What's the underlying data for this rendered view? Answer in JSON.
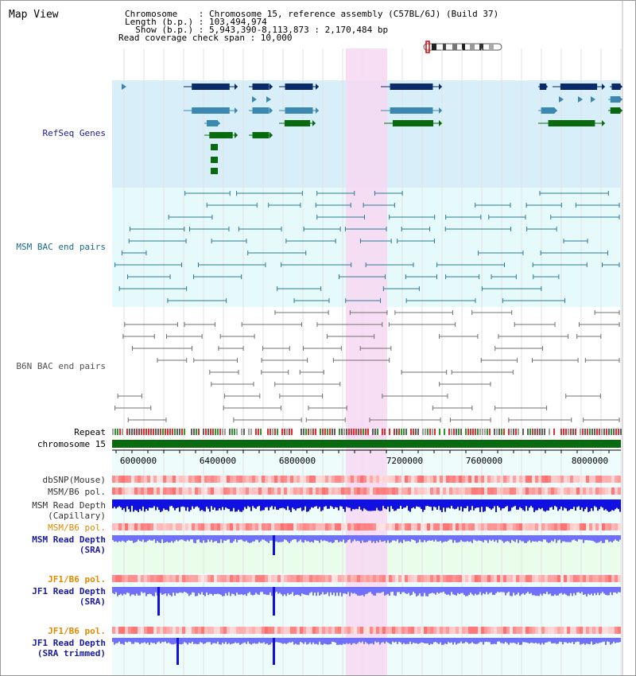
{
  "title": "Map View",
  "header": {
    "chromosome": "Chromosome    : Chromosome 15, reference assembly (C57BL/6J) (Build 37)",
    "length": "Length (b.p.) : 103,494,974",
    "show": "  Show (b.p.) : 5,943,390-8,113,873 : 2,170,484 bp",
    "coverage": "Read coverage check span : 10,000"
  },
  "tracks": {
    "refseq": "RefSeq Genes",
    "msm_bac": "MSM BAC end pairs",
    "b6n_bac": "B6N BAC end pairs",
    "repeat": "Repeat",
    "chromosome": "chromosome 15",
    "dbsnp": "dbSNP(Mouse)",
    "msm_b6_pol": "MSM/B6 pol.",
    "msm_depth_cap_1": "MSM Read Depth",
    "msm_depth_cap_2": "(Capillary)",
    "msm_b6_pol2": "MSM/B6 pol.",
    "msm_depth_sra_1": "MSM Read Depth",
    "msm_depth_sra_2": "(SRA)",
    "jf1_b6_pol": "JF1/B6 pol.",
    "jf1_depth_sra_1": "JF1 Read Depth",
    "jf1_depth_sra_2": "(SRA)",
    "jf1_b6_pol2": "JF1/B6 pol.",
    "jf1_depth_trim_1": "JF1 Read Depth",
    "jf1_depth_trim_2": "(SRA trimmed)"
  },
  "axis": {
    "ticks": [
      "6000000",
      "6400000",
      "6800000",
      "7200000",
      "7600000",
      "8000000"
    ]
  },
  "colors": {
    "refseq_label": "#1a1aa0",
    "msm_label": "#1a6a8a",
    "b6n_label": "#505050",
    "orange_label": "#e08a00",
    "blue_label": "#1a1aa0",
    "highlight": "#f7d8f2",
    "gene_dark": "#0a2a6a",
    "gene_mid": "#3a88b0",
    "gene_green": "#0a6a10",
    "chrom_green": "#0a6a10",
    "depth_blue": "#1010e0",
    "depth_light": "#7070ff"
  }
}
